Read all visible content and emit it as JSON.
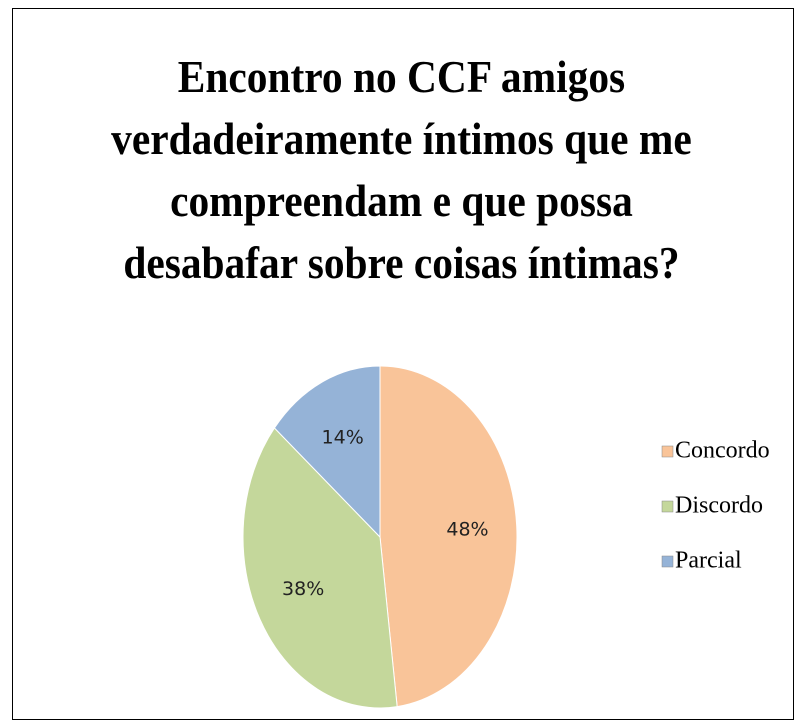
{
  "chart_data": {
    "type": "pie",
    "title": "Encontro no CCF amigos\nverdadeiramente íntimos que me\ncompreendam e que possa\ndesabafar sobre coisas íntimas?",
    "categories": [
      "Concordo",
      "Discordo",
      "Parcial"
    ],
    "values": [
      48,
      38,
      14
    ],
    "value_labels": [
      "48%",
      "38%",
      "14%"
    ],
    "colors": [
      "#f9c499",
      "#c4d79b",
      "#95b3d7"
    ],
    "legend": "right"
  }
}
